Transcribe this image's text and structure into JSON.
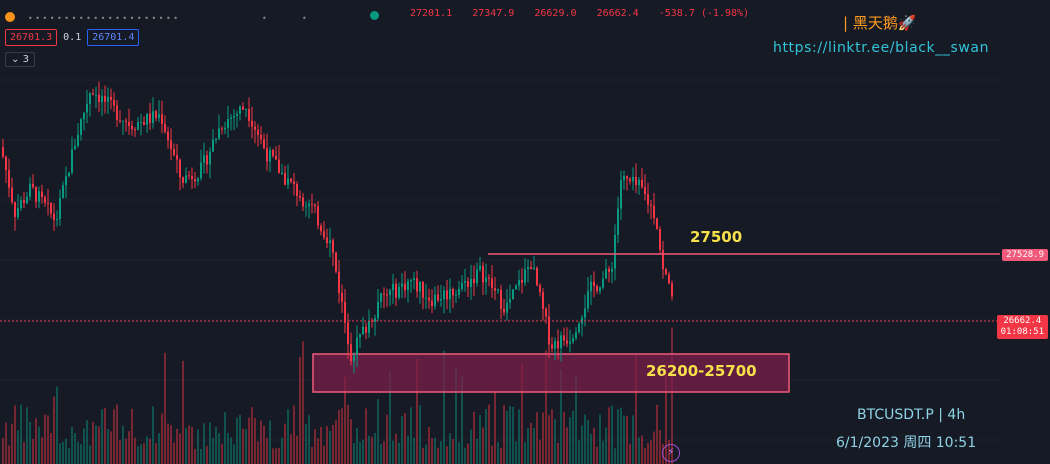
{
  "header": {
    "open": "27201.1",
    "high": "27347.9",
    "low": "26629.0",
    "close": "26662.4",
    "change": "-538.7 (-1.98%)",
    "bid": "26701.3",
    "spread": "0.1",
    "ask": "26701.4",
    "indicator_toggle": "3"
  },
  "brand": {
    "name": "| 黑天鹅🚀",
    "link": "https://linktr.ee/black__swan"
  },
  "tags": {
    "resistance": "27528.9",
    "current_price": "26662.4",
    "countdown": "01:08:51"
  },
  "annotations": {
    "resistance_label": "27500",
    "zone_label": "26200-25700"
  },
  "footer": {
    "symbol": "BTCUSDT.P | 4h",
    "datetime": "6/1/2023 周四 10:51"
  },
  "colors": {
    "up": "#089981",
    "down": "#f23645",
    "line": "#f0597a",
    "zone_fill": "#7a1f4a",
    "zone_border": "#f0597a"
  },
  "chart_data": {
    "type": "candlestick",
    "symbol": "BTCUSDT.P",
    "interval": "4h",
    "ylim": [
      25500,
      29200
    ],
    "y_range_note": "",
    "waypoints": [
      [
        0,
        28250
      ],
      [
        14,
        27550
      ],
      [
        30,
        27800
      ],
      [
        55,
        27450
      ],
      [
        75,
        28350
      ],
      [
        90,
        28900
      ],
      [
        108,
        28700
      ],
      [
        130,
        28500
      ],
      [
        160,
        28600
      ],
      [
        180,
        27900
      ],
      [
        200,
        28000
      ],
      [
        220,
        28500
      ],
      [
        245,
        28700
      ],
      [
        265,
        28200
      ],
      [
        285,
        27900
      ],
      [
        310,
        27600
      ],
      [
        330,
        27200
      ],
      [
        350,
        26000
      ],
      [
        380,
        26600
      ],
      [
        410,
        26800
      ],
      [
        430,
        26600
      ],
      [
        455,
        26700
      ],
      [
        480,
        26900
      ],
      [
        505,
        26500
      ],
      [
        530,
        27000
      ],
      [
        550,
        26100
      ],
      [
        570,
        26200
      ],
      [
        590,
        26700
      ],
      [
        610,
        26900
      ],
      [
        620,
        27900
      ],
      [
        640,
        27800
      ],
      [
        655,
        27500
      ],
      [
        662,
        26900
      ],
      [
        672,
        26662
      ]
    ],
    "resistance": 27528.9,
    "support_zone": [
      25700,
      26200
    ],
    "last_close": 26662.4
  }
}
